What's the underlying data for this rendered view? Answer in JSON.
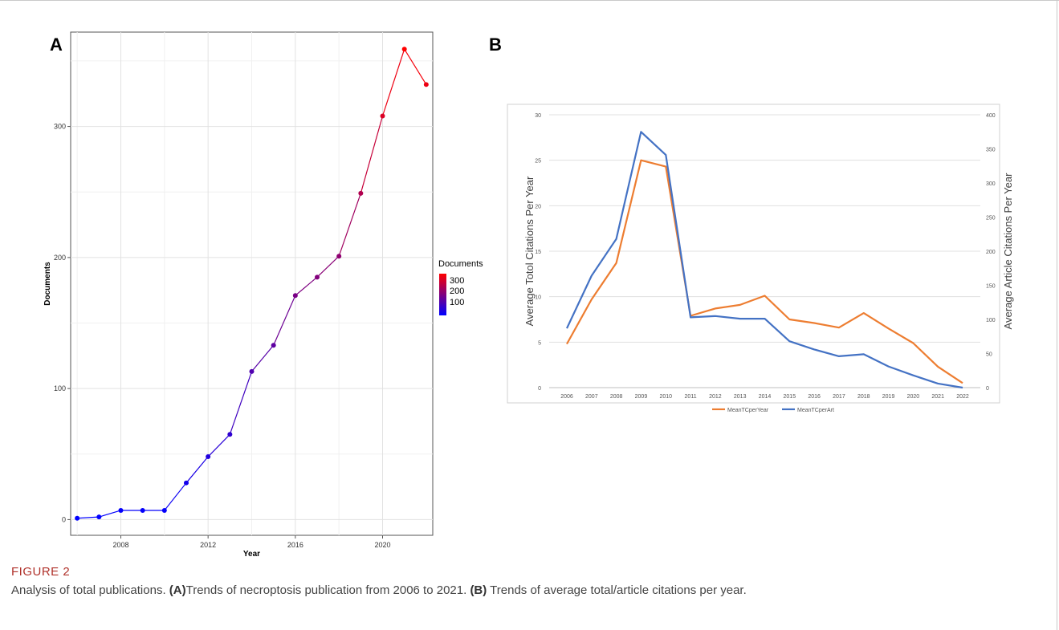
{
  "figure": {
    "label": "FIGURE 2",
    "caption_intro": "Analysis of total publications. ",
    "caption_a_tag": "(A)",
    "caption_a_text": "Trends of necroptosis publication from 2006 to 2021. ",
    "caption_b_tag": "(B)",
    "caption_b_text": " Trends of average total/article citations per year."
  },
  "chart_data": [
    {
      "panel": "A",
      "type": "line",
      "title": "",
      "xlabel": "Year",
      "ylabel": "Documents",
      "x": [
        2006,
        2007,
        2008,
        2009,
        2010,
        2011,
        2012,
        2013,
        2014,
        2015,
        2016,
        2017,
        2018,
        2019,
        2020,
        2021,
        2022
      ],
      "series": [
        {
          "name": "Documents",
          "values": [
            1,
            2,
            7,
            7,
            7,
            28,
            48,
            65,
            113,
            133,
            171,
            185,
            201,
            249,
            308,
            359,
            332
          ]
        }
      ],
      "xlim": [
        2005.7,
        2022.3
      ],
      "ylim": [
        -12,
        372
      ],
      "xticks": [
        2008,
        2012,
        2016,
        2020
      ],
      "yticks": [
        0,
        100,
        200,
        300
      ],
      "grid": true,
      "legend": {
        "title": "Documents",
        "position": "right",
        "labels": [
          "300",
          "200",
          "100"
        ],
        "gradient": [
          "#0000ff",
          "#ff0000"
        ]
      }
    },
    {
      "panel": "B",
      "type": "line",
      "title": "",
      "xlabel": "",
      "ylabel_left": "Average Totol Citations Per Year",
      "ylabel_right": "Average Article  Citations Per Year",
      "x": [
        "2006",
        "2007",
        "2008",
        "2009",
        "2010",
        "2011",
        "2012",
        "2013",
        "2014",
        "2015",
        "2016",
        "2017",
        "2018",
        "2019",
        "2020",
        "2021",
        "2022"
      ],
      "series": [
        {
          "name": "MeanTCperYear",
          "axis": "left",
          "color": "#ed7d31",
          "values": [
            4.8,
            9.7,
            13.7,
            25.0,
            24.3,
            7.9,
            8.7,
            9.1,
            10.1,
            7.5,
            7.1,
            6.6,
            8.2,
            6.5,
            4.9,
            2.3,
            0.5
          ]
        },
        {
          "name": "MeanTCperArt",
          "axis": "right",
          "color": "#4472c4",
          "values": [
            87,
            164,
            218,
            375,
            341,
            103,
            105,
            101,
            101,
            68,
            56,
            46,
            49,
            31,
            18,
            6,
            0
          ]
        }
      ],
      "ylim_left": [
        0,
        30
      ],
      "ylim_right": [
        0,
        400
      ],
      "yticks_left": [
        0,
        5,
        10,
        15,
        20,
        25,
        30
      ],
      "yticks_right": [
        0,
        50,
        100,
        150,
        200,
        250,
        300,
        350,
        400
      ],
      "grid": true,
      "legend_position": "bottom"
    }
  ]
}
